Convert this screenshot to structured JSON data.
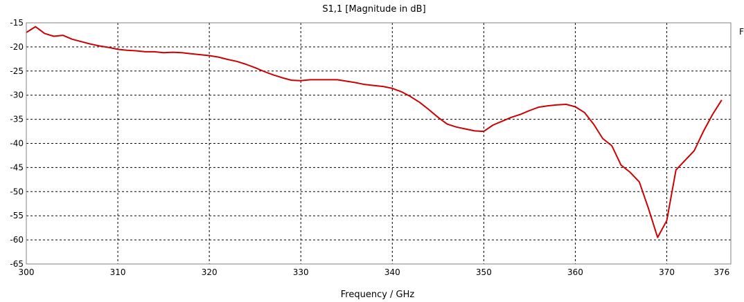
{
  "chart_data": {
    "type": "line",
    "title": "S1,1 [Magnitude in dB]",
    "xlabel": "Frequency / GHz",
    "ylabel": "",
    "xlim": [
      300,
      377
    ],
    "ylim": [
      -65,
      -15
    ],
    "x_ticks": [
      300,
      310,
      320,
      330,
      340,
      350,
      360,
      370,
      376
    ],
    "x_tick_labels": [
      "300",
      "310",
      "320",
      "330",
      "340",
      "350",
      "360",
      "370",
      "376"
    ],
    "y_ticks": [
      -15,
      -20,
      -25,
      -30,
      -35,
      -40,
      -45,
      -50,
      -55,
      -60,
      -65
    ],
    "y_tick_labels": [
      "-15",
      "-20",
      "-25",
      "-30",
      "-35",
      "-40",
      "-45",
      "-50",
      "-55",
      "-60",
      "-65"
    ],
    "grid": true,
    "legend_marker": "F",
    "series": [
      {
        "color": "#cc0000",
        "x": [
          300,
          301,
          302,
          303,
          304,
          305,
          306,
          307,
          308,
          309,
          310,
          311,
          312,
          313,
          314,
          315,
          316,
          317,
          318,
          319,
          320,
          321,
          322,
          323,
          324,
          325,
          326,
          327,
          328,
          329,
          330,
          331,
          332,
          333,
          334,
          335,
          336,
          337,
          338,
          339,
          340,
          341,
          342,
          343,
          344,
          345,
          346,
          347,
          348,
          349,
          350,
          351,
          352,
          353,
          354,
          355,
          356,
          357,
          358,
          359,
          360,
          361,
          362,
          363,
          364,
          365,
          366,
          367,
          368,
          369,
          370,
          371,
          372,
          373,
          374,
          375,
          376
        ],
        "y": [
          -17.0,
          -15.8,
          -17.2,
          -17.8,
          -17.6,
          -18.4,
          -18.9,
          -19.4,
          -19.8,
          -20.1,
          -20.5,
          -20.7,
          -20.8,
          -21.0,
          -21.0,
          -21.2,
          -21.1,
          -21.2,
          -21.4,
          -21.6,
          -21.8,
          -22.1,
          -22.6,
          -23.0,
          -23.6,
          -24.3,
          -25.1,
          -25.8,
          -26.4,
          -26.9,
          -27.0,
          -26.8,
          -26.8,
          -26.8,
          -26.8,
          -27.1,
          -27.4,
          -27.8,
          -28.0,
          -28.2,
          -28.6,
          -29.3,
          -30.3,
          -31.5,
          -33.0,
          -34.6,
          -36.0,
          -36.6,
          -37.0,
          -37.4,
          -37.5,
          -36.2,
          -35.4,
          -34.6,
          -34.0,
          -33.2,
          -32.5,
          -32.2,
          -32.0,
          -31.9,
          -32.4,
          -33.6,
          -36.0,
          -39.0,
          -40.5,
          -44.5,
          -46.0,
          -48.0,
          -53.5,
          -59.5,
          -56.0,
          -45.5,
          -43.5,
          -41.5,
          -37.5,
          -34.0,
          -31.0
        ]
      }
    ]
  }
}
